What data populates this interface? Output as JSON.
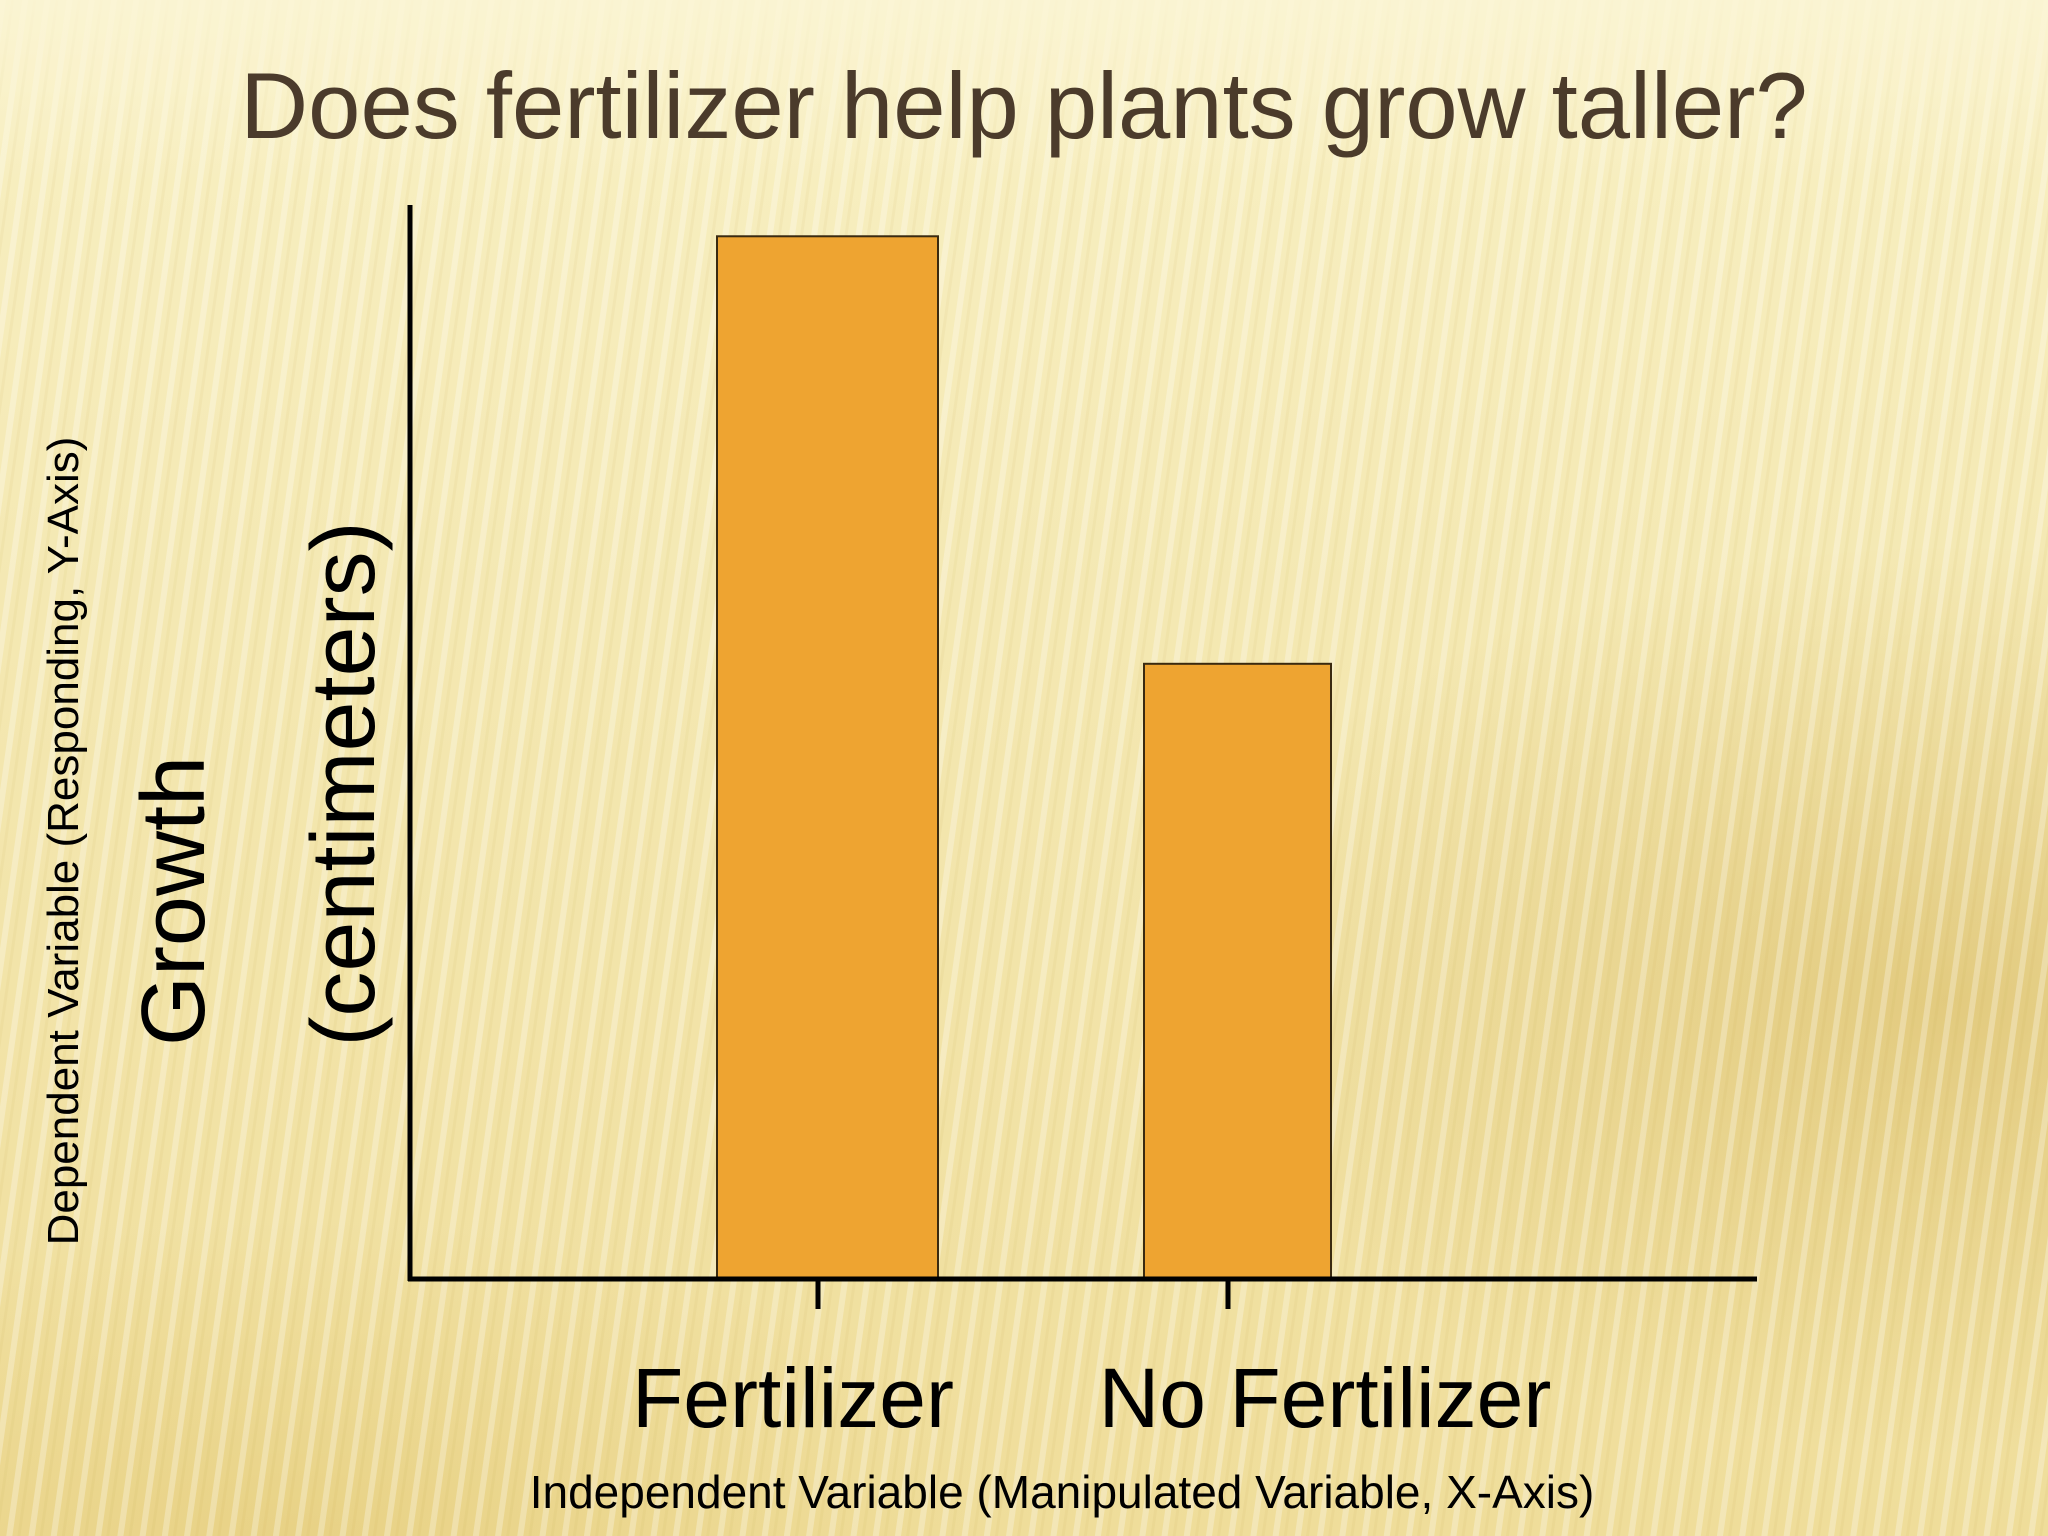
{
  "slide": {
    "title": "Does fertilizer help plants grow taller?"
  },
  "colors": {
    "bar_fill": "#eea431",
    "bar_stroke": "#3a2a10",
    "axis": "#000000",
    "title_text": "#4b3b2b",
    "background": "#f4e8b2"
  },
  "chart_data": {
    "type": "bar",
    "title": "Does fertilizer help plants grow taller?",
    "categories": [
      "Fertilizer",
      "No Fertilizer"
    ],
    "values": [
      100,
      59
    ],
    "ylabel_outer": "Dependent Variable (Responding,  Y-Axis)",
    "ylabel_main": "Growth",
    "ylabel_units": "(centimeters)",
    "xlabel": "Independent Variable (Manipulated Variable, X-Axis)",
    "ylim": [
      0,
      103
    ],
    "grid": false,
    "legend": "none"
  }
}
